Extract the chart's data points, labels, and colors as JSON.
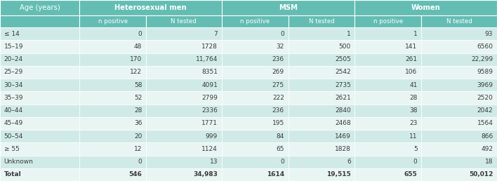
{
  "col_groups": [
    "Age (years)",
    "Heterosexual men",
    "MSM",
    "Women"
  ],
  "subheaders": [
    "n positive",
    "N tested",
    "n positive",
    "N tested",
    "n positive",
    "N tested"
  ],
  "age_labels": [
    "≤ 14",
    "15–19",
    "20–24",
    "25–29",
    "30–34",
    "35–39",
    "40–44",
    "45–49",
    "50–54",
    "≥ 55",
    "Unknown",
    "Total"
  ],
  "het_n_pos": [
    "0",
    "48",
    "170",
    "122",
    "58",
    "52",
    "28",
    "36",
    "20",
    "12",
    "0",
    "546"
  ],
  "het_N_test": [
    "7",
    "1728",
    "11,764",
    "8351",
    "4091",
    "2799",
    "2336",
    "1771",
    "999",
    "1124",
    "13",
    "34,983"
  ],
  "msm_n_pos": [
    "0",
    "32",
    "236",
    "269",
    "275",
    "222",
    "236",
    "195",
    "84",
    "65",
    "0",
    "1614"
  ],
  "msm_N_test": [
    "1",
    "500",
    "2505",
    "2542",
    "2735",
    "2621",
    "2840",
    "2468",
    "1469",
    "1828",
    "6",
    "19,515"
  ],
  "wom_n_pos": [
    "1",
    "141",
    "261",
    "106",
    "41",
    "28",
    "38",
    "23",
    "11",
    "5",
    "0",
    "655"
  ],
  "wom_N_test": [
    "93",
    "6560",
    "22,299",
    "9589",
    "3969",
    "2520",
    "2042",
    "1564",
    "866",
    "492",
    "18",
    "50,012"
  ],
  "header_bg": "#63bdb3",
  "subheader_bg": "#63bdb3",
  "row_bg_light": "#e8f5f3",
  "row_bg_mid": "#d0ebe7",
  "header_text": "#ffffff",
  "body_text": "#3a3a3a",
  "fig_width": 7.08,
  "fig_height": 2.58,
  "dpi": 100
}
